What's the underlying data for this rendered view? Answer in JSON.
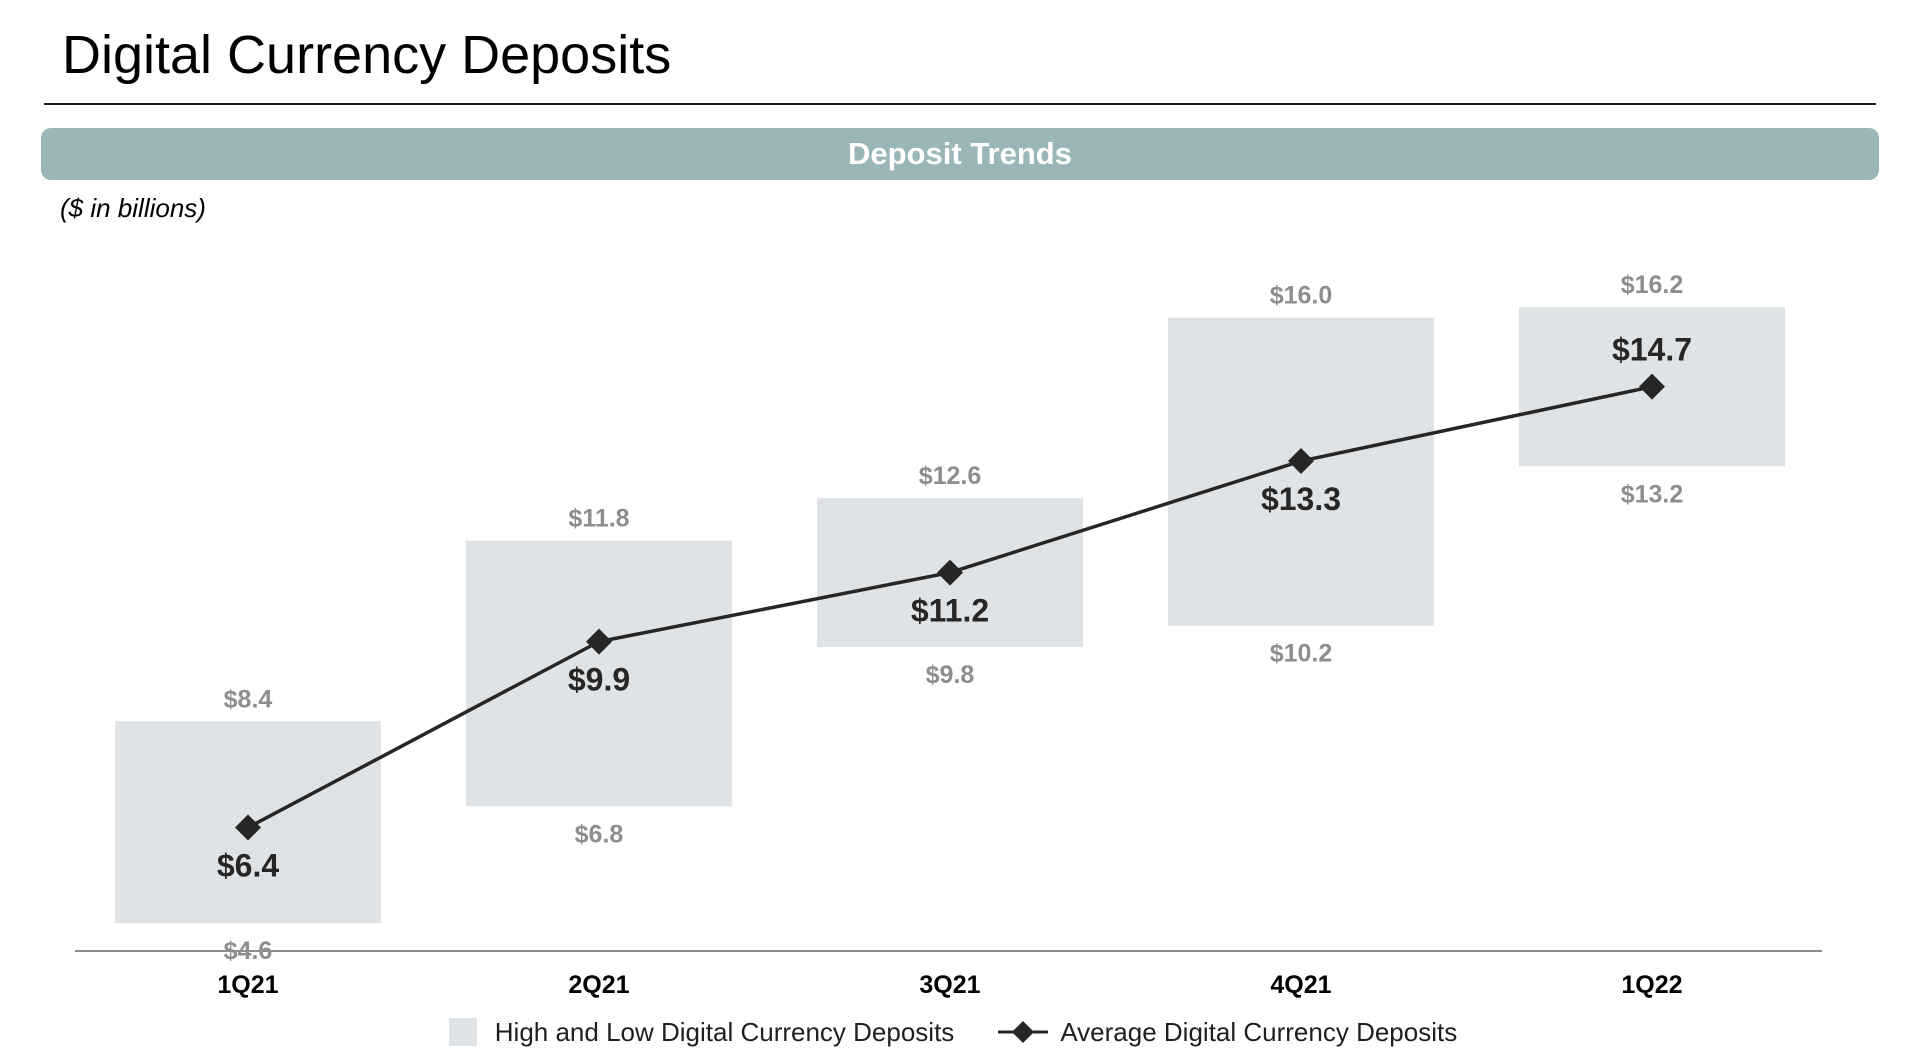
{
  "header": {
    "title": "Digital Currency Deposits"
  },
  "banner": {
    "label": "Deposit Trends"
  },
  "unit_note": "($ in billions)",
  "colors": {
    "range_box": "#dfe3e6",
    "line": "#262626",
    "range_label": "#8e8e8e",
    "avg_label": "#262626",
    "axis": "#8c8c8c",
    "banner": "#9bb6b9"
  },
  "chart_data": {
    "type": "bar",
    "categories": [
      "1Q21",
      "2Q21",
      "3Q21",
      "4Q21",
      "1Q22"
    ],
    "series": [
      {
        "name": "High and Low Digital Currency Deposits",
        "kind": "floating-range-bar",
        "high": [
          8.4,
          11.8,
          12.6,
          16.0,
          16.2
        ],
        "low": [
          4.6,
          6.8,
          9.8,
          10.2,
          13.2
        ],
        "high_labels": [
          "$8.4",
          "$11.8",
          "$12.6",
          "$16.0",
          "$16.2"
        ],
        "low_labels": [
          "$4.6",
          "$6.8",
          "$9.8",
          "$10.2",
          "$13.2"
        ]
      },
      {
        "name": "Average Digital Currency Deposits",
        "kind": "line",
        "marker": "diamond",
        "values": [
          6.4,
          9.9,
          11.2,
          13.3,
          14.7
        ],
        "labels": [
          "$6.4",
          "$9.9",
          "$11.2",
          "$13.3",
          "$14.7"
        ],
        "label_position": [
          "below",
          "below",
          "below",
          "below",
          "above"
        ]
      }
    ],
    "title": "",
    "xlabel": "",
    "ylabel": "",
    "ylim": [
      2.4,
      17.8
    ],
    "y_axis_visible": false,
    "grid": false,
    "legend_position": "bottom-center"
  }
}
